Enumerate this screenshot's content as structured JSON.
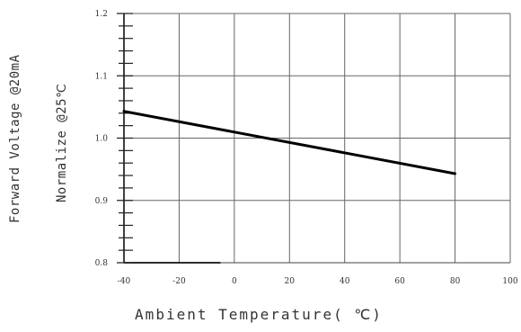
{
  "chart_data": {
    "type": "line",
    "title": "",
    "xlabel": "Ambient Temperature( ℃)",
    "ylabel_lines": [
      "Forward Voltage @20mA",
      "Normalize @25℃"
    ],
    "xlim": [
      -40,
      100
    ],
    "ylim": [
      0.8,
      1.2
    ],
    "x_ticks": [
      -40,
      -20,
      0,
      20,
      40,
      60,
      80,
      100
    ],
    "y_ticks": [
      0.8,
      0.9,
      1.0,
      1.1,
      1.2
    ],
    "x_tick_labels": [
      "-40",
      "-20",
      "0",
      "20",
      "40",
      "60",
      "80",
      "100"
    ],
    "y_tick_labels": [
      "0.8",
      "0.9",
      "1.0",
      "1.1",
      "1.2"
    ],
    "grid": true,
    "series": [
      {
        "x": [
          -40,
          80
        ],
        "y": [
          1.043,
          0.943
        ],
        "color": "#000000"
      }
    ]
  }
}
